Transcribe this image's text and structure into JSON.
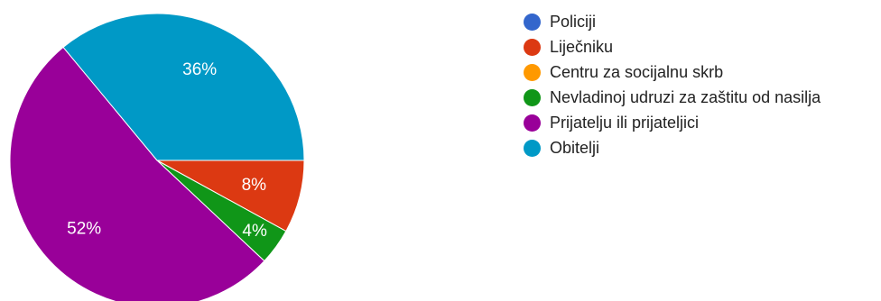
{
  "chart_data": {
    "type": "pie",
    "slices": [
      {
        "label": "Policiji",
        "value": 0,
        "display": "",
        "color": "#3366cc"
      },
      {
        "label": "Liječniku",
        "value": 8,
        "display": "8%",
        "color": "#dc3912"
      },
      {
        "label": "Centru za socijalnu skrb",
        "value": 0,
        "display": "",
        "color": "#ff9900"
      },
      {
        "label": "Nevladinoj udruzi za zaštitu od nasilja",
        "value": 4,
        "display": "4%",
        "color": "#109618"
      },
      {
        "label": "Prijatelju ili prijateljici",
        "value": 52,
        "display": "52%",
        "color": "#990099"
      },
      {
        "label": "Obitelji",
        "value": 36,
        "display": "36%",
        "color": "#0099c6"
      }
    ],
    "start_angle_deg": 90,
    "direction": "clockwise",
    "legend_position": "right"
  }
}
